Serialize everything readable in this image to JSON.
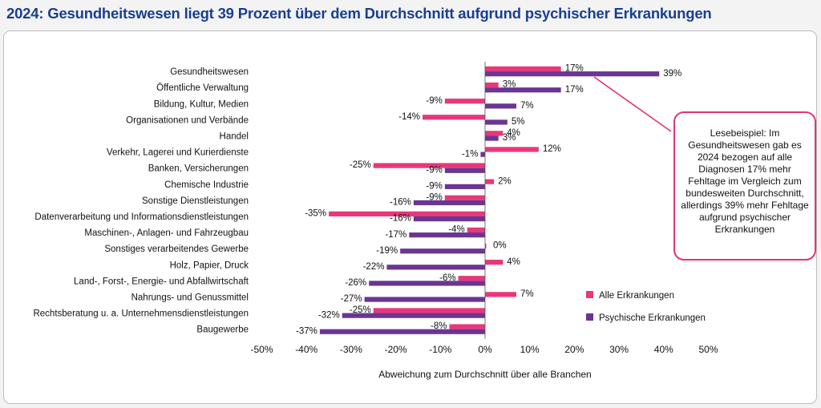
{
  "title": "2024: Gesundheitswesen liegt 39 Prozent über dem Durchschnitt aufgrund psychischer Erkrankungen",
  "colors": {
    "alle": "#e8377a",
    "psychisch": "#6a3593",
    "title": "#1a3f8f",
    "callout_border": "#e53378"
  },
  "callout": {
    "text": "Lesebeispiel: Im Gesundheitswesen gab es 2024 bezogen auf alle Diagnosen 17% mehr Fehltage im Vergleich zum bundesweiten Durchschnitt, allerdings 39% mehr Fehltage aufgrund psychischer Erkrankungen"
  },
  "chart_data": {
    "type": "bar",
    "orientation": "horizontal",
    "xlabel": "Abweichung zum Durchschnitt über alle Branchen",
    "xlim": [
      -50,
      50
    ],
    "xticks": [
      -50,
      -40,
      -30,
      -20,
      -10,
      0,
      10,
      20,
      30,
      40,
      50
    ],
    "tick_suffix": "%",
    "grid": false,
    "legend_position": "bottom-right",
    "categories": [
      "Gesundheitswesen",
      "Öffentliche Verwaltung",
      "Bildung, Kultur, Medien",
      "Organisationen und Verbände",
      "Handel",
      "Verkehr, Lagerei und Kurierdienste",
      "Banken, Versicherungen",
      "Chemische Industrie",
      "Sonstige Dienstleistungen",
      "Datenverarbeitung und Informationsdienstleistungen",
      "Maschinen-, Anlagen- und Fahrzeugbau",
      "Sonstiges verarbeitendes Gewerbe",
      "Holz, Papier, Druck",
      "Land-, Forst-,  Energie- und Abfallwirtschaft",
      "Nahrungs- und Genussmittel",
      "Rechtsberatung u. a. Unternehmensdienstleistungen",
      "Baugewerbe"
    ],
    "series": [
      {
        "name": "Alle  Erkrankungen",
        "values": [
          17,
          3,
          -9,
          -14,
          4,
          12,
          -25,
          2,
          -9,
          -35,
          -4,
          0,
          4,
          -6,
          7,
          -25,
          -8
        ]
      },
      {
        "name": "Psychische Erkrankungen",
        "values": [
          39,
          17,
          7,
          5,
          3,
          -1,
          -9,
          -9,
          -16,
          -16,
          -17,
          -19,
          -22,
          -26,
          -27,
          -32,
          -37
        ]
      }
    ]
  }
}
